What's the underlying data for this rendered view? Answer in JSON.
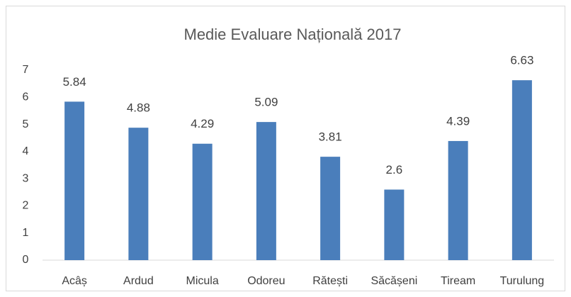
{
  "chart_data": {
    "type": "bar",
    "title": "Medie Evaluare Națională 2017",
    "categories": [
      "Acâș",
      "Ardud",
      "Micula",
      "Odoreu",
      "Rătești",
      "Săcășeni",
      "Tiream",
      "Turulung"
    ],
    "values": [
      5.84,
      4.88,
      4.29,
      5.09,
      3.81,
      2.6,
      4.39,
      6.63
    ],
    "color": "#4a7ebb",
    "ylim": [
      0,
      7
    ],
    "yticks": [
      0,
      1,
      2,
      3,
      4,
      5,
      6,
      7
    ],
    "grid": false
  }
}
